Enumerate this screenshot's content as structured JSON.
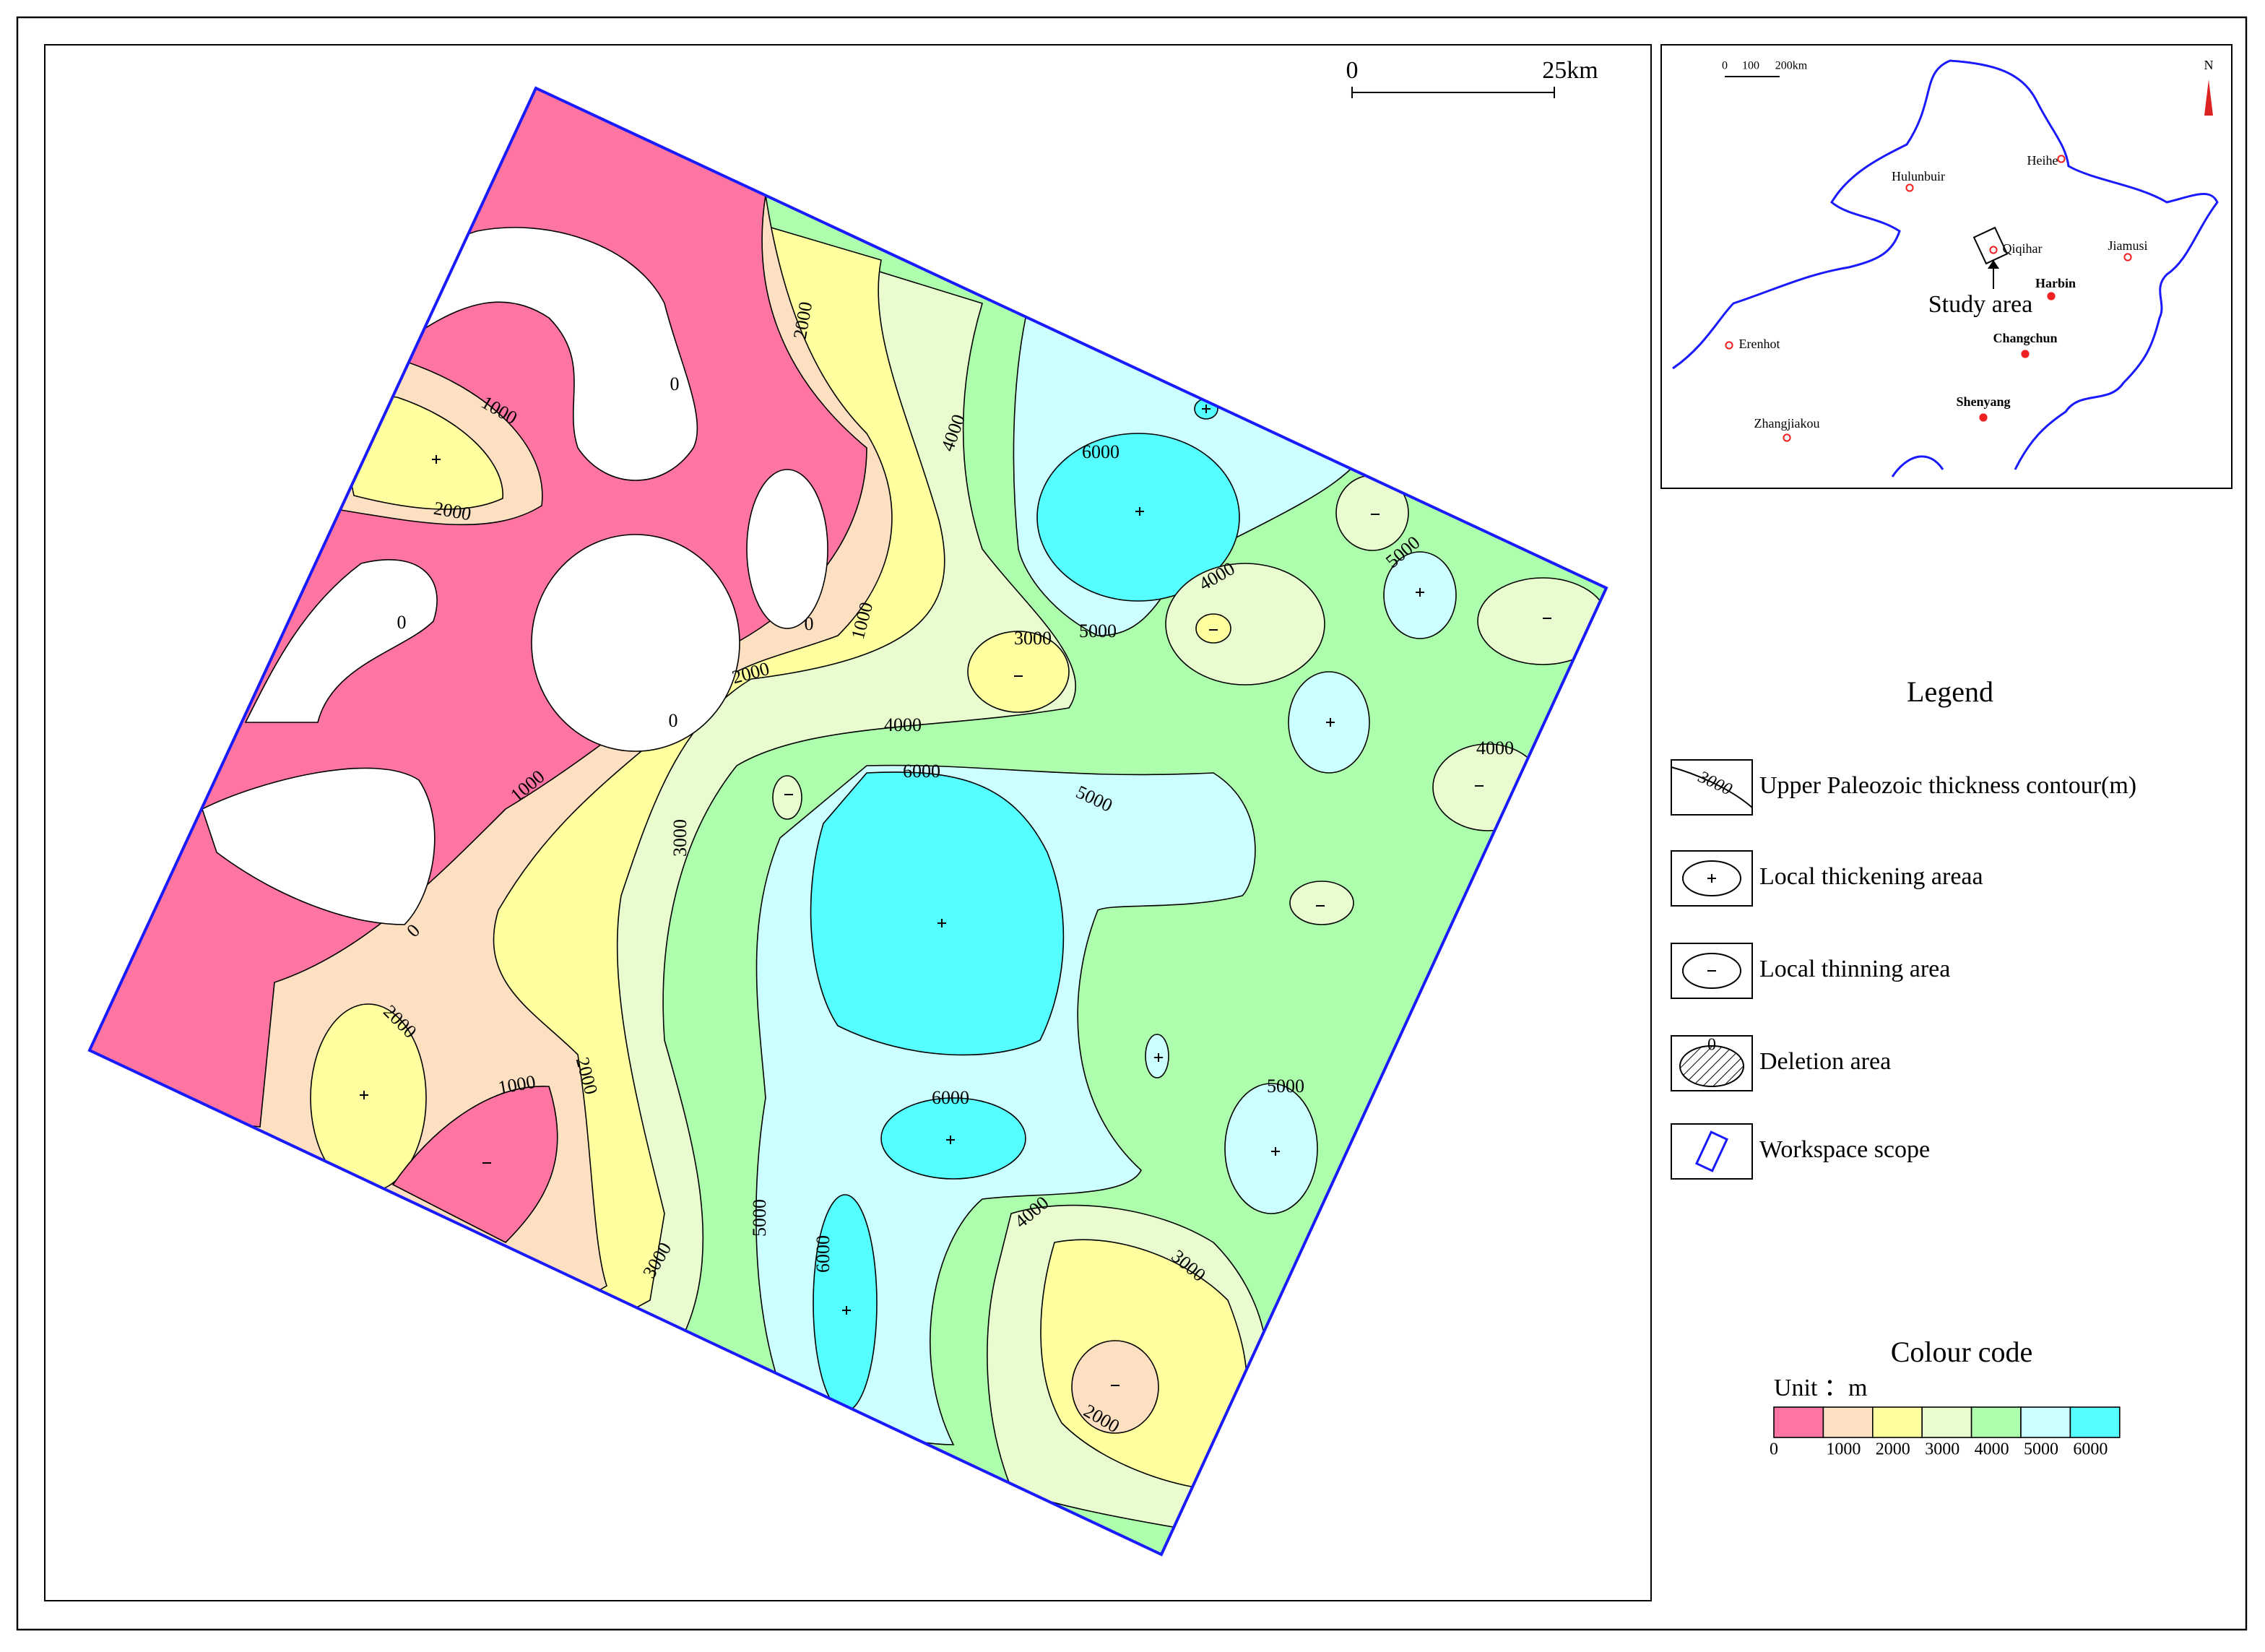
{
  "scale_bar": {
    "start": "0",
    "end": "25km"
  },
  "contour_labels": [
    0,
    1000,
    2000,
    0,
    0,
    1000,
    2000,
    0,
    2000,
    4000,
    6000,
    5000,
    3000,
    4000,
    5000,
    4000,
    4000,
    6000,
    5000,
    1000,
    3000,
    0,
    2000,
    1000,
    2000,
    6000,
    5000,
    5000,
    6000,
    3000,
    4000,
    3000,
    2000
  ],
  "inset": {
    "scale": [
      "0",
      "100",
      "200km"
    ],
    "north": "N",
    "places": [
      "Hulunbuir",
      "Heihe",
      "Qiqihar",
      "Jiamusi",
      "Harbin",
      "Changchun",
      "Erenhot",
      "Shenyang",
      "Zhangjiakou"
    ],
    "study_area": "Study area"
  },
  "legend": {
    "title": "Legend",
    "items": [
      {
        "label": "Upper Paleozoic thickness contour(m)",
        "icon_text": "3000"
      },
      {
        "label": "Local thickening areaa"
      },
      {
        "label": "Local thinning area"
      },
      {
        "label": "Deletion area",
        "icon_text": "0"
      },
      {
        "label": "Workspace scope"
      }
    ]
  },
  "colour_code": {
    "title": "Colour code",
    "unit": "Unit ：m",
    "ticks": [
      0,
      1000,
      2000,
      3000,
      4000,
      5000,
      6000
    ],
    "colors": [
      "#ff75a2",
      "#fde0c2",
      "#ffff9f",
      "#e9fccf",
      "#adffad",
      "#ccffff",
      "#55ffff"
    ]
  }
}
